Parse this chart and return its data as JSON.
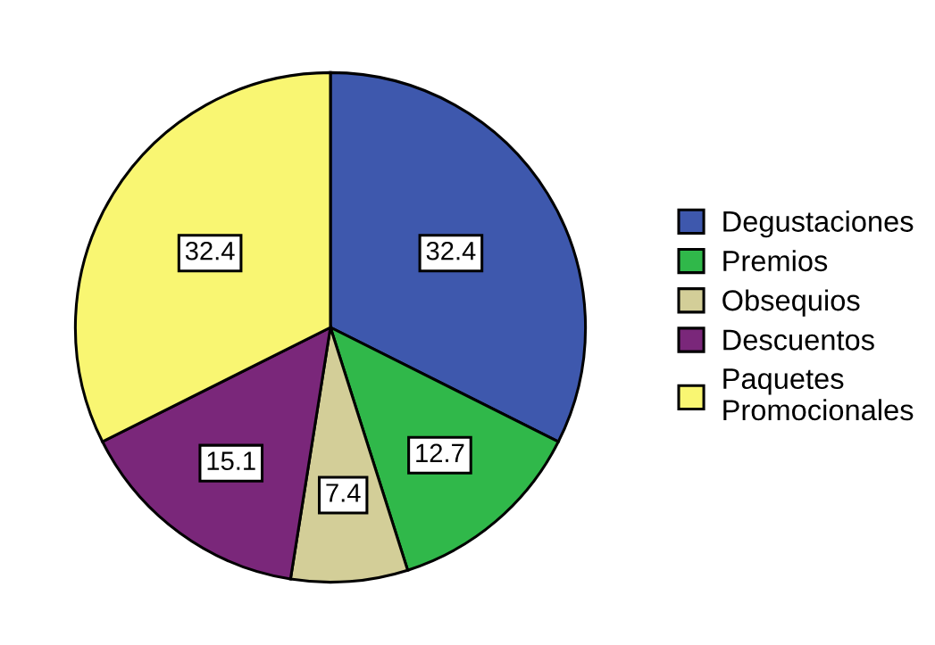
{
  "chart_data": {
    "type": "pie",
    "categories": [
      "Degustaciones",
      "Premios",
      "Obsequios",
      "Descuentos",
      "Paquetes\nPromocionales"
    ],
    "values": [
      32.4,
      12.7,
      7.4,
      15.1,
      32.4
    ],
    "colors": [
      "#3e58ad",
      "#30b84a",
      "#d3ce98",
      "#7a277a",
      "#f9f672"
    ],
    "data_labels": true,
    "legend": "right"
  }
}
